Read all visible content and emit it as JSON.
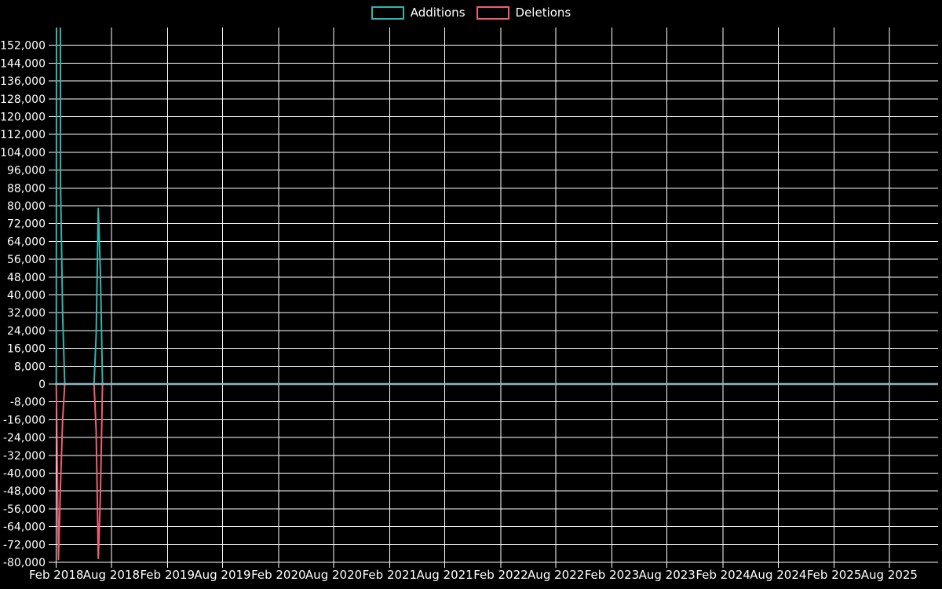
{
  "app": {
    "background_color": "#000000",
    "text_color": "#ffffff",
    "gridline_color": "#ffffff",
    "zero_line_color": "#8fb6c2"
  },
  "legend": {
    "items": [
      {
        "label": "Additions",
        "color": "#31b5ae"
      },
      {
        "label": "Deletions",
        "color": "#f15e74"
      }
    ]
  },
  "chart_data": {
    "type": "line",
    "title": "",
    "xlabel": "",
    "ylabel": "",
    "grid": true,
    "legend_position": "top-center",
    "xlim": [
      2018.073,
      2026.02
    ],
    "ylim": [
      -80000,
      160000
    ],
    "y_axis": {
      "tick_min": -80000,
      "tick_max": 152000,
      "step": 8000,
      "tick_labels": [
        "-80,000",
        "-72,000",
        "-64,000",
        "-56,000",
        "-48,000",
        "-40,000",
        "-32,000",
        "-24,000",
        "-16,000",
        "-8,000",
        "0",
        "8,000",
        "16,000",
        "24,000",
        "32,000",
        "40,000",
        "48,000",
        "56,000",
        "64,000",
        "72,000",
        "80,000",
        "88,000",
        "96,000",
        "104,000",
        "112,000",
        "120,000",
        "128,000",
        "136,000",
        "144,000",
        "152,000"
      ]
    },
    "x_ticks": [
      {
        "label": "Feb 2018",
        "x": 2018.085
      },
      {
        "label": "Aug 2018",
        "x": 2018.581
      },
      {
        "label": "Feb 2019",
        "x": 2019.085
      },
      {
        "label": "Aug 2019",
        "x": 2019.581
      },
      {
        "label": "Feb 2020",
        "x": 2020.085
      },
      {
        "label": "Aug 2020",
        "x": 2020.581
      },
      {
        "label": "Feb 2021",
        "x": 2021.085
      },
      {
        "label": "Aug 2021",
        "x": 2021.581
      },
      {
        "label": "Feb 2022",
        "x": 2022.085
      },
      {
        "label": "Aug 2022",
        "x": 2022.581
      },
      {
        "label": "Feb 2023",
        "x": 2023.085
      },
      {
        "label": "Aug 2023",
        "x": 2023.581
      },
      {
        "label": "Feb 2024",
        "x": 2024.085
      },
      {
        "label": "Aug 2024",
        "x": 2024.581
      },
      {
        "label": "Feb 2025",
        "x": 2025.085
      },
      {
        "label": "Aug 2025",
        "x": 2025.581
      }
    ],
    "zero_line_color": "#8fb6c2",
    "series": [
      {
        "name": "Additions",
        "color": "#31b5ae",
        "peak_clipped_at_top": true,
        "points": [
          [
            2018.073,
            0
          ],
          [
            2018.085,
            0
          ],
          [
            2018.104,
            1500000
          ],
          [
            2018.123,
            90000
          ],
          [
            2018.142,
            31000
          ],
          [
            2018.161,
            0
          ],
          [
            2018.425,
            0
          ],
          [
            2018.444,
            22000
          ],
          [
            2018.463,
            79000
          ],
          [
            2018.482,
            50000
          ],
          [
            2018.501,
            0
          ],
          [
            2026.02,
            0
          ]
        ]
      },
      {
        "name": "Deletions",
        "color": "#f15e74",
        "peak_clipped_at_top": false,
        "points": [
          [
            2018.073,
            0
          ],
          [
            2018.085,
            0
          ],
          [
            2018.104,
            -79000
          ],
          [
            2018.123,
            -45000
          ],
          [
            2018.142,
            -16000
          ],
          [
            2018.161,
            0
          ],
          [
            2018.425,
            0
          ],
          [
            2018.444,
            -21000
          ],
          [
            2018.463,
            -78500
          ],
          [
            2018.482,
            -50000
          ],
          [
            2018.501,
            0
          ],
          [
            2026.02,
            0
          ]
        ]
      }
    ]
  }
}
